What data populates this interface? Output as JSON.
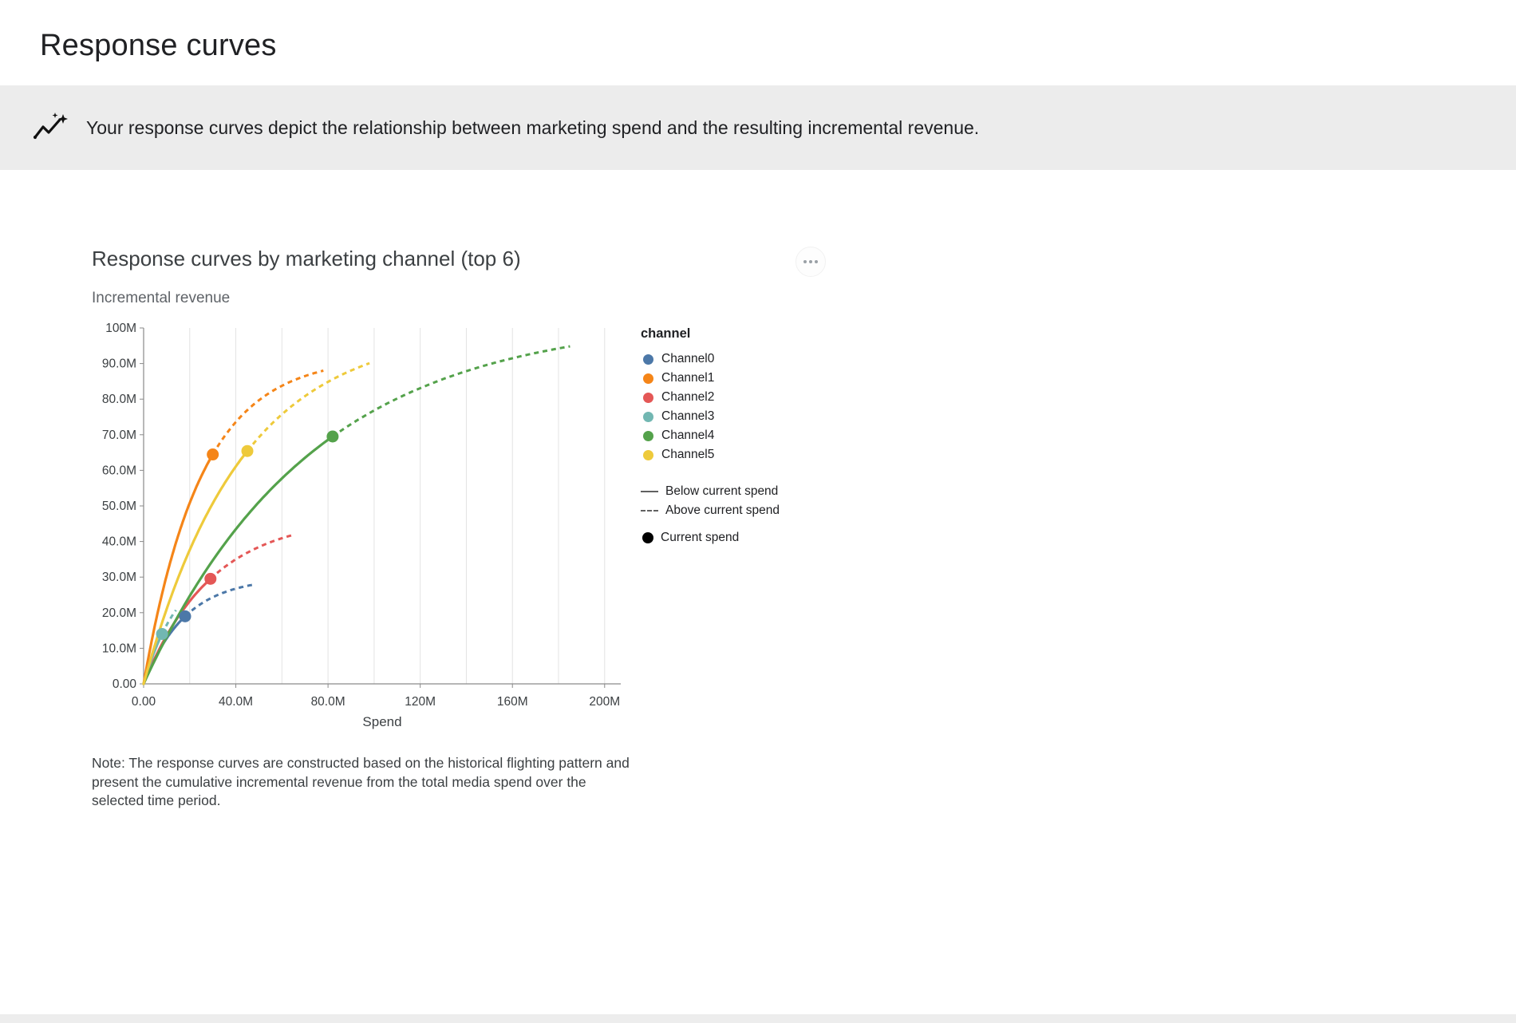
{
  "page": {
    "title": "Response curves",
    "banner_text": "Your response curves depict the relationship between marketing spend and the resulting incremental revenue."
  },
  "icons": {
    "banner": "sparkline-with-stars",
    "menu": "horizontal-ellipsis"
  },
  "chart": {
    "title": "Response curves by marketing channel (top 6)",
    "ylabel_top": "Incremental revenue",
    "xlabel": "Spend",
    "note": "Note: The response curves are constructed based on the historical flighting pattern and present the cumulative incremental revenue from the total media spend over the selected time period."
  },
  "legend": {
    "title": "channel",
    "below_label": "Below current spend",
    "above_label": "Above current spend",
    "current_label": "Current spend",
    "line_color": "#616161",
    "current_dot_color": "#000000"
  },
  "chart_data": {
    "type": "line",
    "title": "Response curves by marketing channel (top 6)",
    "xlabel": "Spend",
    "ylabel": "Incremental revenue",
    "units": "millions",
    "xlim": [
      0,
      207
    ],
    "ylim": [
      0,
      100
    ],
    "grid": "vertical-only",
    "legend_position": "right",
    "x_ticks": [
      {
        "v": 0,
        "label": "0.00"
      },
      {
        "v": 40,
        "label": "40.0M"
      },
      {
        "v": 80,
        "label": "80.0M"
      },
      {
        "v": 120,
        "label": "120M"
      },
      {
        "v": 160,
        "label": "160M"
      },
      {
        "v": 200,
        "label": "200M"
      }
    ],
    "y_ticks": [
      {
        "v": 0,
        "label": "0.00"
      },
      {
        "v": 10,
        "label": "10.0M"
      },
      {
        "v": 20,
        "label": "20.0M"
      },
      {
        "v": 30,
        "label": "30.0M"
      },
      {
        "v": 40,
        "label": "40.0M"
      },
      {
        "v": 50,
        "label": "50.0M"
      },
      {
        "v": 60,
        "label": "60.0M"
      },
      {
        "v": 70,
        "label": "70.0M"
      },
      {
        "v": 80,
        "label": "80.0M"
      },
      {
        "v": 90,
        "label": "90.0M"
      },
      {
        "v": 100,
        "label": "100M"
      }
    ],
    "x_gridlines": [
      20,
      40,
      60,
      80,
      100,
      120,
      140,
      160,
      180,
      200
    ],
    "curve_model": "incremental_revenue = ymax * (1 - exp(-rate * spend)); solid below current spend, dashed above; all values in millions",
    "series": [
      {
        "name": "Channel0",
        "color": "#4c78a8",
        "ymax": 30,
        "rate": 0.0556,
        "current_spend": 18,
        "current_revenue": 19.0,
        "max_spend_shown": 47,
        "revenue_at_max": 27.8
      },
      {
        "name": "Channel1",
        "color": "#f58518",
        "ymax": 92,
        "rate": 0.0402,
        "current_spend": 30,
        "current_revenue": 64.5,
        "max_spend_shown": 78,
        "revenue_at_max": 88.0
      },
      {
        "name": "Channel2",
        "color": "#e45756",
        "ymax": 47,
        "rate": 0.0341,
        "current_spend": 29,
        "current_revenue": 29.5,
        "max_spend_shown": 65,
        "revenue_at_max": 41.9
      },
      {
        "name": "Channel3",
        "color": "#72b7b2",
        "ymax": 35,
        "rate": 0.064,
        "current_spend": 8,
        "current_revenue": 14.0,
        "max_spend_shown": 14,
        "revenue_at_max": 20.7
      },
      {
        "name": "Channel4",
        "color": "#54a24b",
        "ymax": 103,
        "rate": 0.0137,
        "current_spend": 82,
        "current_revenue": 69.5,
        "max_spend_shown": 185,
        "revenue_at_max": 94.8
      },
      {
        "name": "Channel5",
        "color": "#eeca3b",
        "ymax": 100,
        "rate": 0.0236,
        "current_spend": 45,
        "current_revenue": 65.4,
        "max_spend_shown": 98,
        "revenue_at_max": 90.1
      }
    ],
    "line_styles": {
      "solid": "Below current spend",
      "dashed": "Above current spend",
      "point": "Current spend"
    }
  }
}
